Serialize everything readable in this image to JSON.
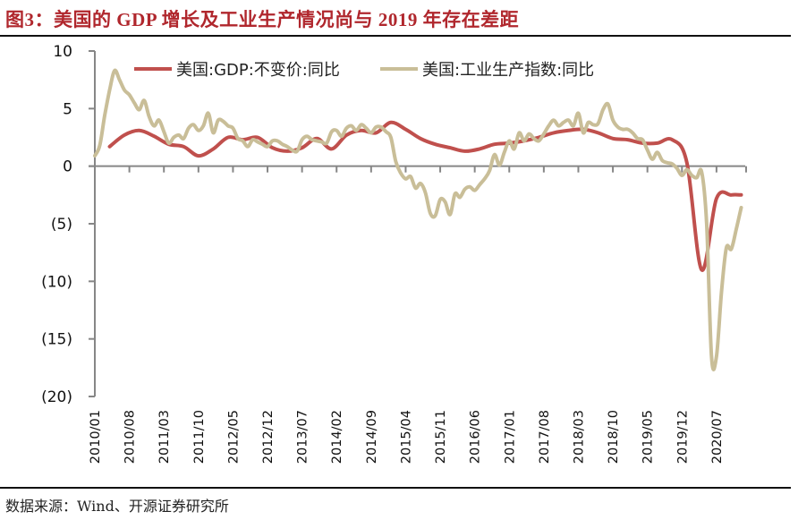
{
  "header": {
    "title": "图3：美国的 GDP 增长及工业生产情况尚与 2019 年存在差距"
  },
  "footer": {
    "source": "数据来源：Wind、开源证券研究所"
  },
  "chart_data": {
    "type": "line",
    "title": "图3：美国的 GDP 增长及工业生产情况尚与 2019 年存在差距",
    "xlabel": "",
    "ylabel": "",
    "ylim": [
      -20,
      10
    ],
    "yticks": [
      10,
      5,
      0,
      -5,
      -10,
      -15,
      -20
    ],
    "ytick_labels": [
      "10",
      "5",
      "0",
      "(5)",
      "(10)",
      "(15)",
      "(20)"
    ],
    "x_start": "2010/01",
    "x_end": "2021/01",
    "xtick_labels": [
      "2010/01",
      "2010/08",
      "2011/03",
      "2011/10",
      "2012/05",
      "2012/12",
      "2013/07",
      "2014/02",
      "2014/09",
      "2015/04",
      "2015/11",
      "2016/06",
      "2017/01",
      "2017/08",
      "2018/03",
      "2018/10",
      "2019/05",
      "2019/12",
      "2020/07"
    ],
    "grid": false,
    "legend_position": "top",
    "series": [
      {
        "name": "美国:GDP:不变价:同比",
        "color": "#c0504d",
        "month_index": [
          3,
          6,
          9,
          12,
          15,
          18,
          21,
          24,
          27,
          30,
          33,
          36,
          39,
          42,
          45,
          48,
          51,
          54,
          57,
          60,
          63,
          66,
          69,
          72,
          75,
          78,
          81,
          84,
          87,
          90,
          93,
          96,
          99,
          102,
          105,
          108,
          111,
          114,
          117,
          120,
          123,
          126,
          129,
          131
        ],
        "values": [
          1.7,
          2.7,
          3.1,
          2.6,
          1.9,
          1.7,
          0.9,
          1.5,
          2.5,
          2.3,
          2.5,
          1.6,
          1.3,
          1.6,
          2.4,
          1.5,
          2.7,
          3.1,
          2.9,
          3.8,
          3.2,
          2.4,
          1.9,
          1.6,
          1.3,
          1.5,
          1.9,
          2.0,
          2.2,
          2.5,
          2.9,
          3.1,
          3.2,
          2.9,
          2.4,
          2.3,
          2.0,
          2.0,
          2.3,
          0.3,
          -9.0,
          -2.8,
          -2.5,
          -2.5
        ]
      },
      {
        "name": "美国:工业生产指数:同比",
        "color": "#c9be98",
        "month_index": [
          0,
          1,
          2,
          3,
          4,
          5,
          6,
          7,
          8,
          9,
          10,
          11,
          12,
          13,
          14,
          15,
          16,
          17,
          18,
          19,
          20,
          21,
          22,
          23,
          24,
          25,
          26,
          27,
          28,
          29,
          30,
          31,
          32,
          33,
          34,
          35,
          36,
          37,
          38,
          39,
          40,
          41,
          42,
          43,
          44,
          45,
          46,
          47,
          48,
          49,
          50,
          51,
          52,
          53,
          54,
          55,
          56,
          57,
          58,
          59,
          60,
          61,
          62,
          63,
          64,
          65,
          66,
          67,
          68,
          69,
          70,
          71,
          72,
          73,
          74,
          75,
          76,
          77,
          78,
          79,
          80,
          81,
          82,
          83,
          84,
          85,
          86,
          87,
          88,
          89,
          90,
          91,
          92,
          93,
          94,
          95,
          96,
          97,
          98,
          99,
          100,
          101,
          102,
          103,
          104,
          105,
          106,
          107,
          108,
          109,
          110,
          111,
          112,
          113,
          114,
          115,
          116,
          117,
          118,
          119,
          120,
          121,
          122,
          123,
          124,
          125,
          126,
          127,
          128,
          129,
          130,
          131
        ],
        "values": [
          0.9,
          1.8,
          4.4,
          6.6,
          8.3,
          7.5,
          6.6,
          6.2,
          5.5,
          4.9,
          5.7,
          4.3,
          3.5,
          4.0,
          3.0,
          2.0,
          2.5,
          2.7,
          2.4,
          3.3,
          3.6,
          3.1,
          3.5,
          4.6,
          2.9,
          4.0,
          3.9,
          3.5,
          3.3,
          2.4,
          2.2,
          1.7,
          2.3,
          2.1,
          1.9,
          1.7,
          2.2,
          2.2,
          1.9,
          1.7,
          1.4,
          1.3,
          2.3,
          2.6,
          2.3,
          2.2,
          2.1,
          2.0,
          3.0,
          3.1,
          2.6,
          3.3,
          3.5,
          3.1,
          3.6,
          3.3,
          2.9,
          3.4,
          3.4,
          3.0,
          2.5,
          0.4,
          -0.6,
          -1.1,
          -0.9,
          -1.9,
          -1.5,
          -2.3,
          -4.1,
          -4.3,
          -2.9,
          -3.1,
          -4.2,
          -2.4,
          -2.7,
          -2.0,
          -1.8,
          -2.1,
          -1.6,
          -1.1,
          -0.4,
          1.0,
          0.1,
          1.2,
          2.2,
          1.5,
          2.9,
          2.2,
          2.8,
          2.4,
          2.2,
          2.8,
          3.5,
          4.0,
          3.5,
          3.8,
          4.0,
          3.5,
          4.6,
          2.9,
          3.8,
          3.6,
          3.7,
          4.9,
          5.4,
          4.0,
          3.4,
          3.2,
          3.2,
          2.9,
          2.4,
          2.3,
          1.4,
          0.6,
          1.2,
          0.5,
          0.3,
          0.2,
          -0.2,
          -0.8,
          -0.3,
          -0.8,
          -1.0,
          -0.5,
          -5.0,
          -16.6,
          -16.5,
          -11.0,
          -7.1,
          -7.2,
          -5.5,
          -3.6
        ]
      }
    ]
  }
}
